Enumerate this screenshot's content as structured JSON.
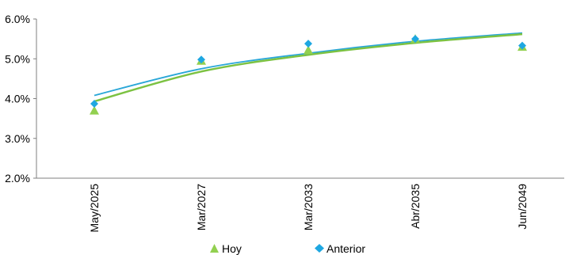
{
  "chart_data": {
    "type": "scatter",
    "categories": [
      "May/2025",
      "Mar/2027",
      "Mar/2033",
      "Abr/2035",
      "Jun/2049"
    ],
    "yticks": [
      "2.0%",
      "3.0%",
      "4.0%",
      "5.0%",
      "6.0%"
    ],
    "ylim": [
      2.0,
      6.0
    ],
    "series": [
      {
        "name": "Hoy",
        "marker": "triangle",
        "color": "#92d050",
        "trend_color": "#7cc242",
        "values": [
          3.7,
          4.95,
          5.22,
          5.5,
          5.3
        ],
        "trendline": [
          3.93,
          4.68,
          5.1,
          5.4,
          5.62
        ]
      },
      {
        "name": "Anterior",
        "marker": "diamond",
        "color": "#1ea7e1",
        "trend_color": "#2aa7d8",
        "values": [
          3.87,
          4.98,
          5.38,
          5.5,
          5.33
        ],
        "trendline": [
          4.08,
          4.75,
          5.14,
          5.44,
          5.65
        ]
      }
    ],
    "grid": false,
    "legend_position": "bottom"
  }
}
